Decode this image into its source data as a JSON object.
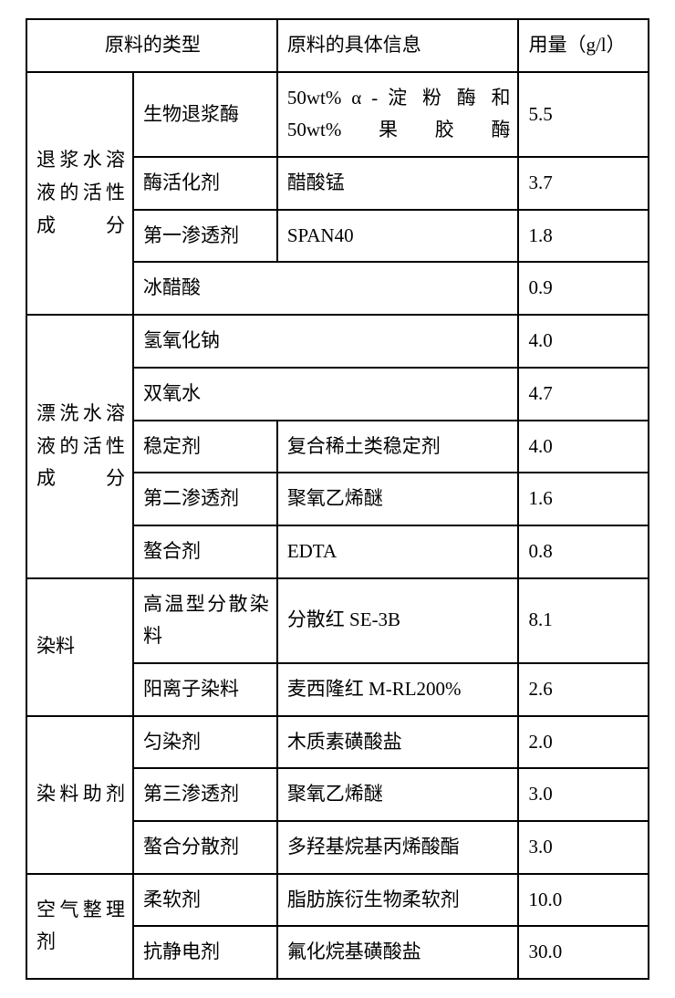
{
  "header": {
    "cat": "原料的类型",
    "detail": "原料的具体信息",
    "amount": "用量（g/l）"
  },
  "groups": [
    {
      "name": "退浆水溶液的活性成分",
      "rows": [
        {
          "sub": "生物退浆酶",
          "detail": "50wt% α - 淀 粉 酶 和50wt%果胶酶",
          "amount": "5.5"
        },
        {
          "sub": "酶活化剂",
          "detail": "醋酸锰",
          "amount": "3.7"
        },
        {
          "sub": "第一渗透剂",
          "detail": "SPAN40",
          "amount": "1.8"
        },
        {
          "sub_span": "冰醋酸",
          "amount": "0.9"
        }
      ]
    },
    {
      "name": "漂洗水溶液的活性成分",
      "rows": [
        {
          "sub_span": "氢氧化钠",
          "amount": "4.0"
        },
        {
          "sub_span": "双氧水",
          "amount": "4.7"
        },
        {
          "sub": "稳定剂",
          "detail": "复合稀土类稳定剂",
          "amount": "4.0"
        },
        {
          "sub": "第二渗透剂",
          "detail": "聚氧乙烯醚",
          "amount": "1.6"
        },
        {
          "sub": "螯合剂",
          "detail": "EDTA",
          "amount": "0.8"
        }
      ]
    },
    {
      "name": "染料",
      "rows": [
        {
          "sub": "高温型分散染料",
          "detail": "分散红 SE-3B",
          "amount": "8.1"
        },
        {
          "sub": "阳离子染料",
          "detail": "麦西隆红 M-RL200%",
          "amount": "2.6"
        }
      ]
    },
    {
      "name": "染料助剂",
      "rows": [
        {
          "sub": "匀染剂",
          "detail": "木质素磺酸盐",
          "amount": "2.0"
        },
        {
          "sub": "第三渗透剂",
          "detail": "聚氧乙烯醚",
          "amount": "3.0"
        },
        {
          "sub": "螯合分散剂",
          "detail": "多羟基烷基丙烯酸酯",
          "amount": "3.0"
        }
      ]
    },
    {
      "name": "空气整理剂",
      "rows": [
        {
          "sub": "柔软剂",
          "detail": "脂肪族衍生物柔软剂",
          "amount": "10.0"
        },
        {
          "sub": "抗静电剂",
          "detail": "氟化烷基磺酸盐",
          "amount": "30.0"
        }
      ]
    }
  ]
}
